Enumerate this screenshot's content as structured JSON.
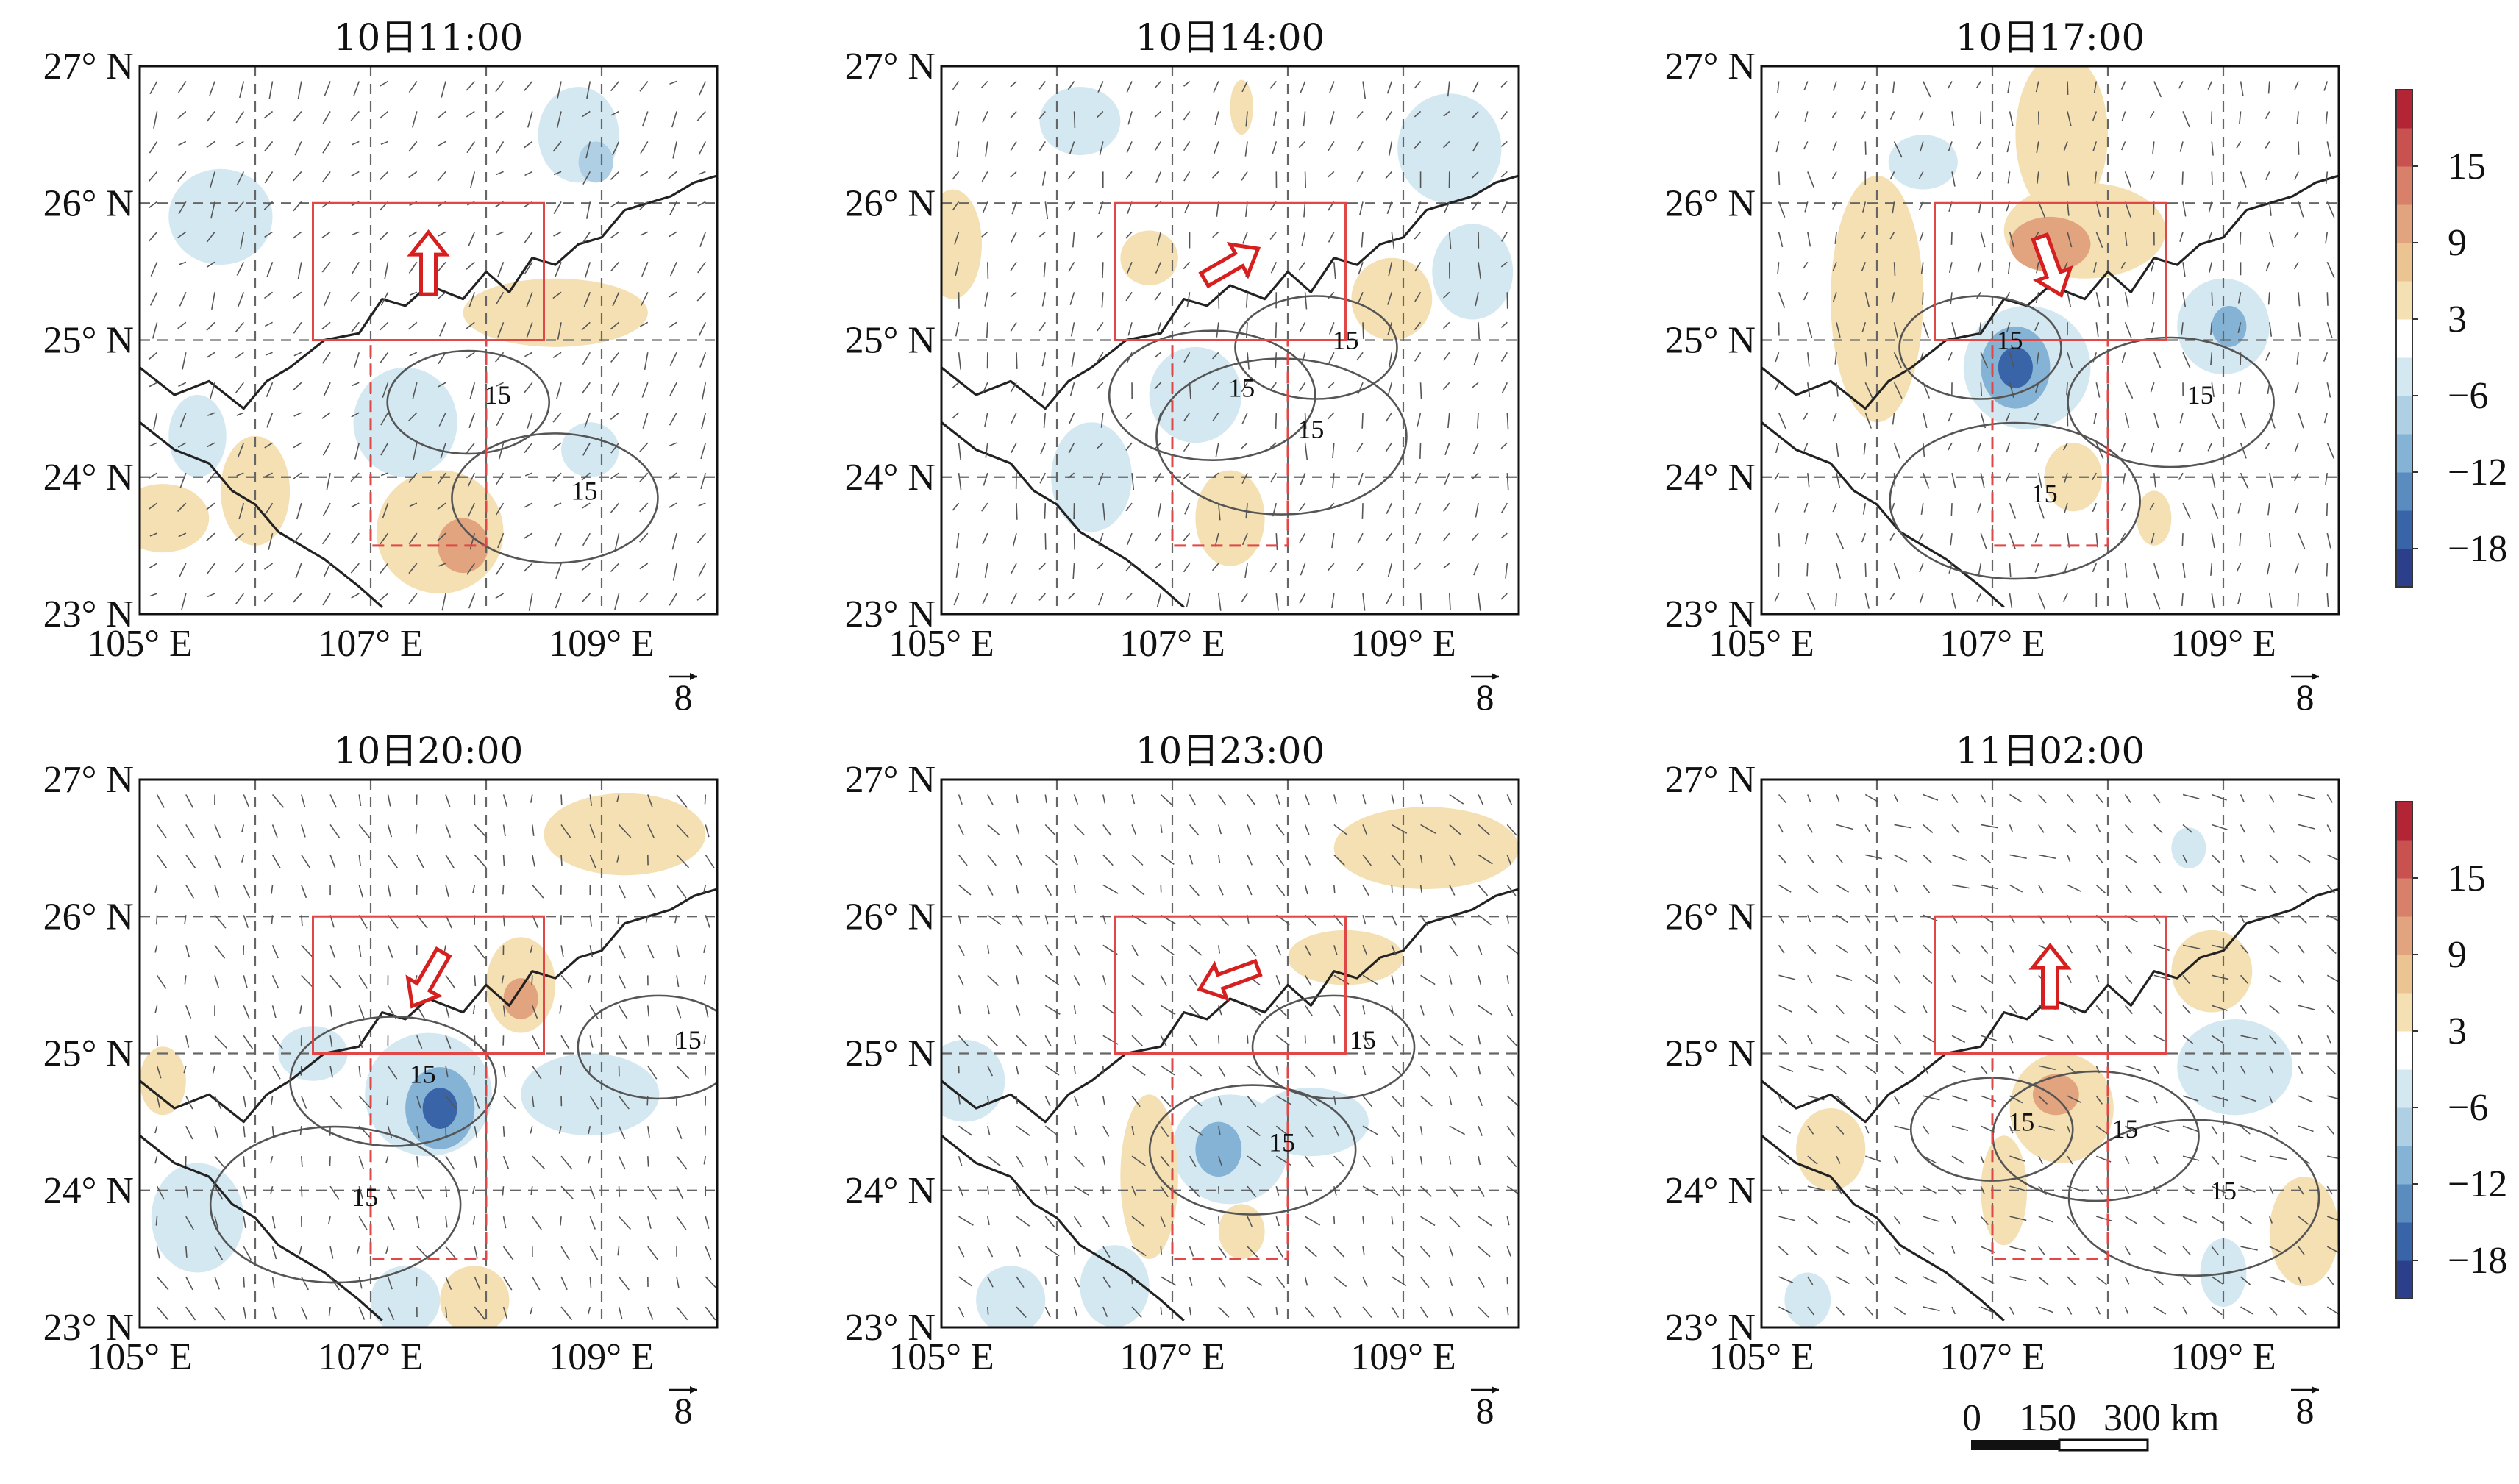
{
  "panels": [
    {
      "title": "10日11:00",
      "motion_deg": 90,
      "blobs": [
        {
          "lon": 108.8,
          "lat": 26.5,
          "rx": 0.35,
          "ry": 0.35,
          "v": -6
        },
        {
          "lon": 108.95,
          "lat": 26.3,
          "rx": 0.15,
          "ry": 0.15,
          "v": -9
        },
        {
          "lon": 105.7,
          "lat": 25.9,
          "rx": 0.45,
          "ry": 0.35,
          "v": -6
        },
        {
          "lon": 108.6,
          "lat": 25.2,
          "rx": 0.8,
          "ry": 0.25,
          "v": 3
        },
        {
          "lon": 107.3,
          "lat": 24.4,
          "rx": 0.45,
          "ry": 0.4,
          "v": -6
        },
        {
          "lon": 105.5,
          "lat": 24.3,
          "rx": 0.25,
          "ry": 0.3,
          "v": -6
        },
        {
          "lon": 106.0,
          "lat": 23.9,
          "rx": 0.3,
          "ry": 0.4,
          "v": 3
        },
        {
          "lon": 107.6,
          "lat": 23.6,
          "rx": 0.55,
          "ry": 0.45,
          "v": 3
        },
        {
          "lon": 107.8,
          "lat": 23.5,
          "rx": 0.22,
          "ry": 0.2,
          "v": 9
        },
        {
          "lon": 105.2,
          "lat": 23.7,
          "rx": 0.4,
          "ry": 0.25,
          "v": 3
        },
        {
          "lon": 108.9,
          "lat": 24.2,
          "rx": 0.25,
          "ry": 0.2,
          "v": -6
        }
      ],
      "contour_labels": [
        {
          "text": "15",
          "lon": 108.1,
          "lat": 24.6
        },
        {
          "text": "15",
          "lon": 108.85,
          "lat": 23.9
        }
      ]
    },
    {
      "title": "10日14:00",
      "motion_deg": 30,
      "blobs": [
        {
          "lon": 109.4,
          "lat": 26.4,
          "rx": 0.45,
          "ry": 0.4,
          "v": -6
        },
        {
          "lon": 106.2,
          "lat": 26.6,
          "rx": 0.35,
          "ry": 0.25,
          "v": -6
        },
        {
          "lon": 107.6,
          "lat": 26.7,
          "rx": 0.1,
          "ry": 0.2,
          "v": 3
        },
        {
          "lon": 108.9,
          "lat": 25.3,
          "rx": 0.35,
          "ry": 0.3,
          "v": 3
        },
        {
          "lon": 109.6,
          "lat": 25.5,
          "rx": 0.35,
          "ry": 0.35,
          "v": -6
        },
        {
          "lon": 107.2,
          "lat": 24.6,
          "rx": 0.4,
          "ry": 0.35,
          "v": -6
        },
        {
          "lon": 107.5,
          "lat": 23.7,
          "rx": 0.3,
          "ry": 0.35,
          "v": 3
        },
        {
          "lon": 105.1,
          "lat": 25.7,
          "rx": 0.25,
          "ry": 0.4,
          "v": 3
        },
        {
          "lon": 106.8,
          "lat": 25.6,
          "rx": 0.25,
          "ry": 0.2,
          "v": 3
        },
        {
          "lon": 106.3,
          "lat": 24.0,
          "rx": 0.35,
          "ry": 0.4,
          "v": -6
        }
      ],
      "contour_labels": [
        {
          "text": "15",
          "lon": 108.5,
          "lat": 25.0
        },
        {
          "text": "15",
          "lon": 107.6,
          "lat": 24.65
        },
        {
          "text": "15",
          "lon": 108.2,
          "lat": 24.35
        }
      ]
    },
    {
      "title": "10日17:00",
      "motion_deg": 290,
      "blobs": [
        {
          "lon": 107.6,
          "lat": 26.5,
          "rx": 0.4,
          "ry": 0.6,
          "v": 3
        },
        {
          "lon": 107.8,
          "lat": 25.8,
          "rx": 0.7,
          "ry": 0.35,
          "v": 3
        },
        {
          "lon": 107.5,
          "lat": 25.7,
          "rx": 0.35,
          "ry": 0.2,
          "v": 9
        },
        {
          "lon": 106.0,
          "lat": 25.3,
          "rx": 0.4,
          "ry": 0.9,
          "v": 3
        },
        {
          "lon": 107.3,
          "lat": 24.8,
          "rx": 0.55,
          "ry": 0.45,
          "v": -6
        },
        {
          "lon": 107.2,
          "lat": 24.8,
          "rx": 0.3,
          "ry": 0.3,
          "v": -12
        },
        {
          "lon": 107.2,
          "lat": 24.8,
          "rx": 0.15,
          "ry": 0.15,
          "v": -18
        },
        {
          "lon": 109.0,
          "lat": 25.1,
          "rx": 0.4,
          "ry": 0.35,
          "v": -6
        },
        {
          "lon": 109.05,
          "lat": 25.1,
          "rx": 0.15,
          "ry": 0.15,
          "v": -12
        },
        {
          "lon": 107.7,
          "lat": 24.0,
          "rx": 0.25,
          "ry": 0.25,
          "v": 3
        },
        {
          "lon": 108.4,
          "lat": 23.7,
          "rx": 0.15,
          "ry": 0.2,
          "v": 3
        },
        {
          "lon": 106.4,
          "lat": 26.3,
          "rx": 0.3,
          "ry": 0.2,
          "v": -6
        }
      ],
      "contour_labels": [
        {
          "text": "15",
          "lon": 107.15,
          "lat": 25.0
        },
        {
          "text": "15",
          "lon": 108.8,
          "lat": 24.6
        },
        {
          "text": "15",
          "lon": 107.45,
          "lat": 23.88
        }
      ]
    },
    {
      "title": "10日20:00",
      "motion_deg": 240,
      "blobs": [
        {
          "lon": 109.2,
          "lat": 26.6,
          "rx": 0.7,
          "ry": 0.3,
          "v": 3
        },
        {
          "lon": 108.3,
          "lat": 25.5,
          "rx": 0.3,
          "ry": 0.35,
          "v": 3
        },
        {
          "lon": 108.3,
          "lat": 25.4,
          "rx": 0.15,
          "ry": 0.15,
          "v": 9
        },
        {
          "lon": 107.5,
          "lat": 24.7,
          "rx": 0.55,
          "ry": 0.45,
          "v": -6
        },
        {
          "lon": 107.6,
          "lat": 24.6,
          "rx": 0.3,
          "ry": 0.3,
          "v": -12
        },
        {
          "lon": 107.6,
          "lat": 24.6,
          "rx": 0.15,
          "ry": 0.15,
          "v": -18
        },
        {
          "lon": 108.9,
          "lat": 24.7,
          "rx": 0.6,
          "ry": 0.3,
          "v": -6
        },
        {
          "lon": 105.5,
          "lat": 23.8,
          "rx": 0.4,
          "ry": 0.4,
          "v": -6
        },
        {
          "lon": 107.3,
          "lat": 23.2,
          "rx": 0.3,
          "ry": 0.25,
          "v": -6
        },
        {
          "lon": 107.9,
          "lat": 23.2,
          "rx": 0.3,
          "ry": 0.25,
          "v": 3
        },
        {
          "lon": 105.2,
          "lat": 24.8,
          "rx": 0.2,
          "ry": 0.25,
          "v": 3
        },
        {
          "lon": 106.5,
          "lat": 25.0,
          "rx": 0.3,
          "ry": 0.2,
          "v": -6
        }
      ],
      "contour_labels": [
        {
          "text": "15",
          "lon": 109.75,
          "lat": 25.1
        },
        {
          "text": "15",
          "lon": 107.45,
          "lat": 24.85
        },
        {
          "text": "15",
          "lon": 106.95,
          "lat": 23.95
        }
      ]
    },
    {
      "title": "10日23:00",
      "motion_deg": 200,
      "blobs": [
        {
          "lon": 109.2,
          "lat": 26.5,
          "rx": 0.8,
          "ry": 0.3,
          "v": 3
        },
        {
          "lon": 108.5,
          "lat": 25.7,
          "rx": 0.5,
          "ry": 0.2,
          "v": 3
        },
        {
          "lon": 107.5,
          "lat": 24.3,
          "rx": 0.5,
          "ry": 0.4,
          "v": -6
        },
        {
          "lon": 107.4,
          "lat": 24.3,
          "rx": 0.2,
          "ry": 0.2,
          "v": -12
        },
        {
          "lon": 108.2,
          "lat": 24.5,
          "rx": 0.5,
          "ry": 0.25,
          "v": -6
        },
        {
          "lon": 106.8,
          "lat": 24.1,
          "rx": 0.25,
          "ry": 0.6,
          "v": 3
        },
        {
          "lon": 105.2,
          "lat": 24.8,
          "rx": 0.35,
          "ry": 0.3,
          "v": -6
        },
        {
          "lon": 105.6,
          "lat": 23.2,
          "rx": 0.3,
          "ry": 0.25,
          "v": -6
        },
        {
          "lon": 107.6,
          "lat": 23.7,
          "rx": 0.2,
          "ry": 0.2,
          "v": 3
        },
        {
          "lon": 106.5,
          "lat": 23.3,
          "rx": 0.3,
          "ry": 0.3,
          "v": -6
        }
      ],
      "contour_labels": [
        {
          "text": "15",
          "lon": 108.65,
          "lat": 25.1
        },
        {
          "text": "15",
          "lon": 107.95,
          "lat": 24.35
        }
      ]
    },
    {
      "title": "11日02:00",
      "motion_deg": 90,
      "blobs": [
        {
          "lon": 108.9,
          "lat": 25.6,
          "rx": 0.35,
          "ry": 0.3,
          "v": 3
        },
        {
          "lon": 109.1,
          "lat": 24.9,
          "rx": 0.5,
          "ry": 0.35,
          "v": -6
        },
        {
          "lon": 107.6,
          "lat": 24.6,
          "rx": 0.45,
          "ry": 0.4,
          "v": 3
        },
        {
          "lon": 107.55,
          "lat": 24.7,
          "rx": 0.2,
          "ry": 0.15,
          "v": 9
        },
        {
          "lon": 105.6,
          "lat": 24.3,
          "rx": 0.3,
          "ry": 0.3,
          "v": 3
        },
        {
          "lon": 107.1,
          "lat": 24.0,
          "rx": 0.2,
          "ry": 0.4,
          "v": 3
        },
        {
          "lon": 109.7,
          "lat": 23.7,
          "rx": 0.3,
          "ry": 0.4,
          "v": 3
        },
        {
          "lon": 109.0,
          "lat": 23.4,
          "rx": 0.2,
          "ry": 0.25,
          "v": -6
        },
        {
          "lon": 108.7,
          "lat": 26.5,
          "rx": 0.15,
          "ry": 0.15,
          "v": -6
        },
        {
          "lon": 105.4,
          "lat": 23.2,
          "rx": 0.2,
          "ry": 0.2,
          "v": -6
        }
      ],
      "contour_labels": [
        {
          "text": "15",
          "lon": 107.25,
          "lat": 24.5
        },
        {
          "text": "15",
          "lon": 108.15,
          "lat": 24.45
        },
        {
          "text": "15",
          "lon": 109.0,
          "lat": 24.0
        }
      ]
    }
  ],
  "axes": {
    "lat_labels": [
      "27° N",
      "26° N",
      "25° N",
      "24° N",
      "23° N"
    ],
    "lon_labels": [
      "105° E",
      "107° E",
      "109° E"
    ]
  },
  "colorbar": {
    "ticks": [
      "15",
      "9",
      "3",
      "−6",
      "−12",
      "−18"
    ],
    "levels": [
      -21,
      -18,
      -15,
      -12,
      -9,
      -6,
      -3,
      3,
      6,
      9,
      12,
      15,
      18
    ],
    "colors": [
      "#2b3f8a",
      "#3a64a8",
      "#5a8cc0",
      "#85b3d6",
      "#aecfe4",
      "#d4e8f2",
      "#ffffff",
      "#f4e0b2",
      "#ebc492",
      "#e2a47e",
      "#d9806b",
      "#c9514f",
      "#b32434"
    ]
  },
  "reference_vector": "8",
  "scale_bar": {
    "labels": [
      "0",
      "150",
      "300 km"
    ]
  },
  "colors": {
    "box": "#e04848",
    "arrow": "#d61f1f"
  }
}
